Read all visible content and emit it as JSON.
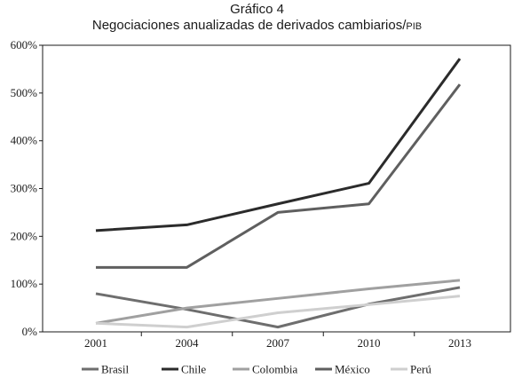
{
  "chart_data": {
    "type": "line",
    "title": "Gráfico 4",
    "subtitle": "Negociaciones anualizadas de derivados cambiarios/",
    "subtitle_suffix": "PIB",
    "x": [
      "2001",
      "2004",
      "2007",
      "2010",
      "2013"
    ],
    "ylim": [
      0,
      600
    ],
    "yticks": [
      0,
      100,
      200,
      300,
      400,
      500,
      600
    ],
    "ytick_labels": [
      "0%",
      "100%",
      "200%",
      "300%",
      "400%",
      "500%",
      "600%"
    ],
    "legend_placement": "bottom",
    "grid": false,
    "series": [
      {
        "name": "Brasil",
        "color": "#6e6e6e",
        "values": [
          80,
          47,
          10,
          58,
          93
        ]
      },
      {
        "name": "Chile",
        "color": "#2b2b2b",
        "values": [
          212,
          224,
          268,
          311,
          572
        ]
      },
      {
        "name": "Colombia",
        "color": "#a0a0a0",
        "values": [
          18,
          50,
          70,
          90,
          108
        ]
      },
      {
        "name": "México",
        "color": "#5f5f5f",
        "values": [
          135,
          135,
          250,
          268,
          518
        ]
      },
      {
        "name": "Perú",
        "color": "#cfcfcf",
        "values": [
          18,
          10,
          40,
          57,
          75
        ]
      }
    ]
  }
}
